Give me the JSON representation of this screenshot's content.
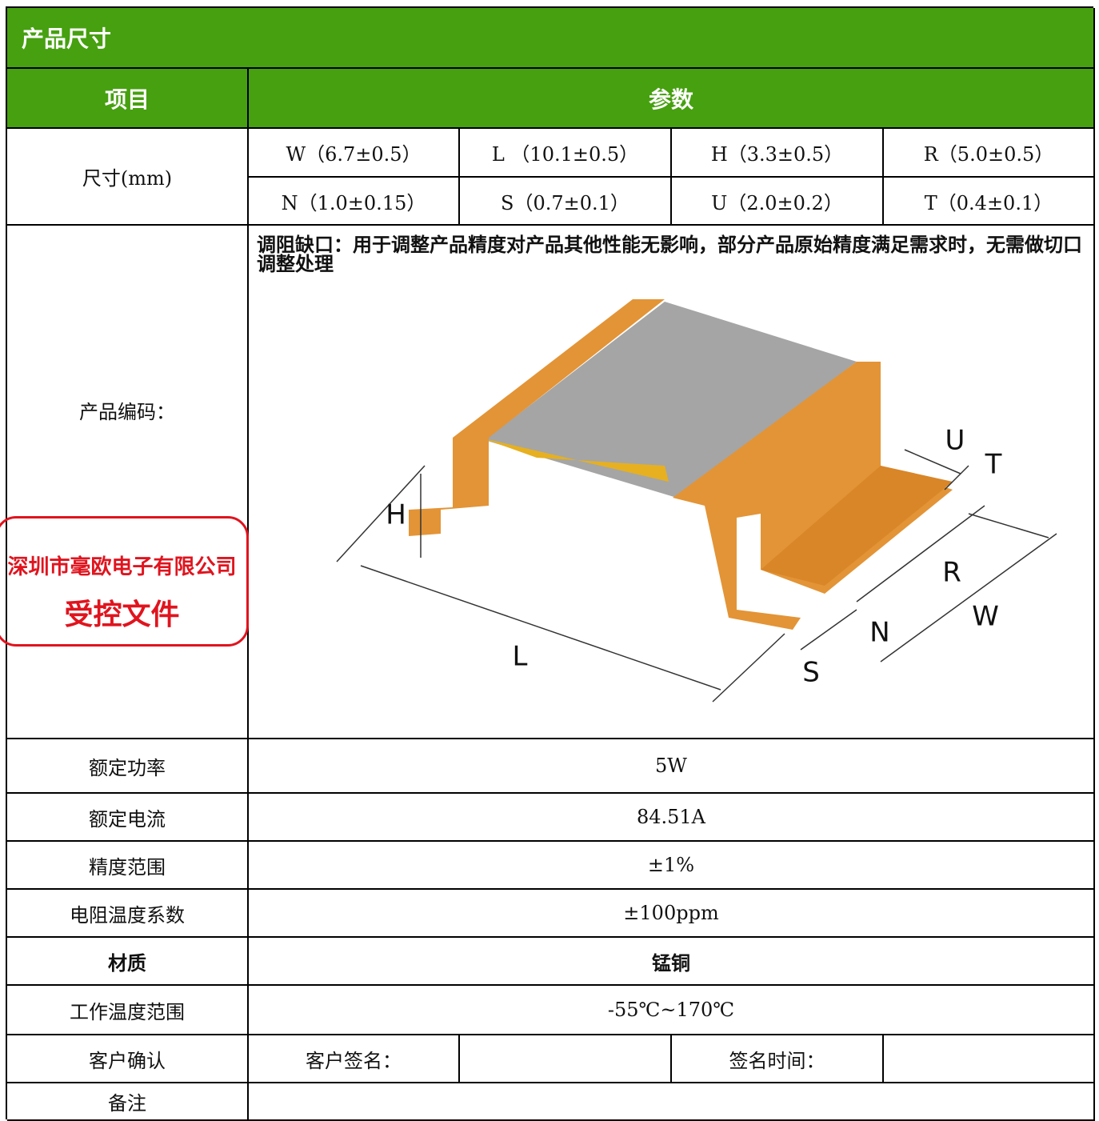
{
  "header": {
    "title": "产品尺寸"
  },
  "table": {
    "columns": [
      "项目",
      "参数"
    ],
    "dimensions": {
      "label": "尺寸(mm)",
      "cells": [
        "W（6.7±0.5）",
        "L （10.1±0.5）",
        "H（3.3±0.5）",
        "R（5.0±0.5）",
        "N（1.0±0.15）",
        "S（0.7±0.1）",
        "U（2.0±0.2）",
        "T（0.4±0.1）"
      ]
    },
    "code": {
      "label": "产品编码：",
      "note": "调阻缺口：用于调整产品精度对产品其他性能无影响，部分产品原始精度满足需求时，无需做切口调整处理",
      "figure_labels": [
        "H",
        "L",
        "S",
        "N",
        "R",
        "W",
        "U",
        "T"
      ]
    },
    "rows": [
      [
        "额定功率",
        "5W"
      ],
      [
        "额定电流",
        "84.51A"
      ],
      [
        "精度范围",
        "±1%"
      ],
      [
        "电阻温度系数",
        "±100ppm"
      ],
      [
        "材质",
        "锰铜"
      ],
      [
        "工作温度范围",
        "-55℃~170℃"
      ]
    ],
    "confirm": {
      "label": "客户确认",
      "sign": "客户签名：",
      "time": "签名时间："
    },
    "remark": {
      "label": "备注"
    }
  },
  "stamp": {
    "company": "深圳市毫欧电子有限公司",
    "text": "受控文件"
  }
}
